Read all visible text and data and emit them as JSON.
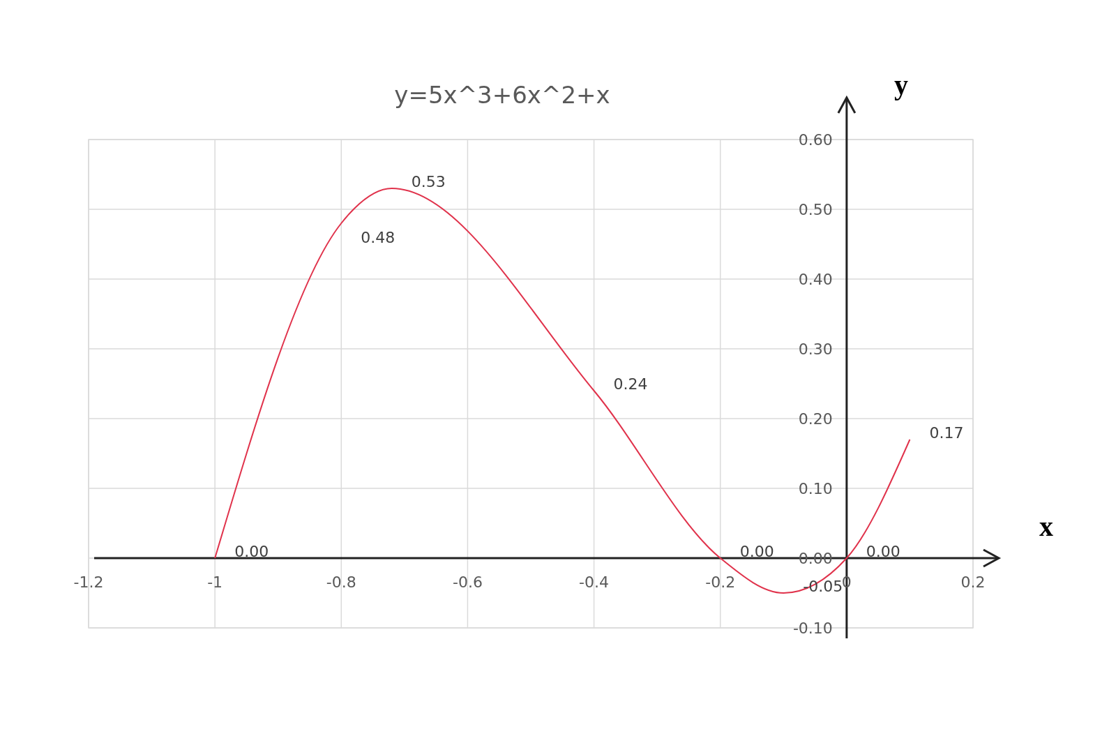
{
  "chart_data": {
    "type": "line",
    "title": "y=5x^3+6x^2+x",
    "xlabel": "x",
    "ylabel": "y",
    "x": [
      -1,
      -0.8,
      -0.72,
      -0.4,
      -0.2,
      -0.1,
      0,
      0.1
    ],
    "series": [
      {
        "color": "#e0324b",
        "values": [
          0,
          0.48,
          0.53,
          0.24,
          0,
          -0.05,
          0,
          0.17
        ],
        "value_labels": [
          "0.00",
          "0.48",
          "0.53",
          "0.24",
          "0.00",
          "-0.05",
          "0.00",
          "0.17"
        ]
      }
    ],
    "xlim": [
      -1.2,
      0.2
    ],
    "xticks": [
      -1.2,
      -1,
      -0.8,
      -0.6,
      -0.4,
      -0.2,
      0,
      0.2
    ],
    "ylim": [
      -0.1,
      0.6
    ],
    "yticks": [
      {
        "value": -0.1,
        "label": "-0.10"
      },
      {
        "value": 0,
        "label": "0.00"
      },
      {
        "value": 0.1,
        "label": "0.10"
      },
      {
        "value": 0.2,
        "label": "0.20"
      },
      {
        "value": 0.3,
        "label": "0.30"
      },
      {
        "value": 0.4,
        "label": "0.40"
      },
      {
        "value": 0.5,
        "label": "0.50"
      },
      {
        "value": 0.6,
        "label": "0.60"
      }
    ],
    "grid": true,
    "marker": "none",
    "line_style": "solid"
  }
}
